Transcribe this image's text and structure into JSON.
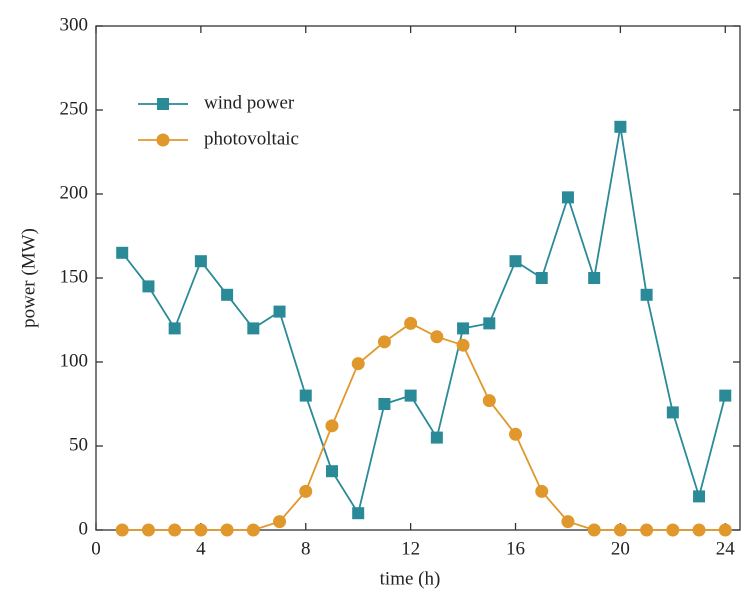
{
  "chart_data": {
    "type": "line",
    "xlabel": "time (h)",
    "ylabel": "power (MW)",
    "x": [
      1,
      2,
      3,
      4,
      5,
      6,
      7,
      8,
      9,
      10,
      11,
      12,
      13,
      14,
      15,
      16,
      17,
      18,
      19,
      20,
      21,
      22,
      23,
      24
    ],
    "series": [
      {
        "name": "wind power",
        "color": "#2a8a98",
        "marker": "square",
        "values": [
          165,
          145,
          120,
          160,
          140,
          120,
          130,
          80,
          35,
          10,
          75,
          80,
          55,
          120,
          123,
          160,
          150,
          198,
          150,
          240,
          140,
          70,
          20,
          80
        ]
      },
      {
        "name": "photovoltaic",
        "color": "#e0982c",
        "marker": "circle",
        "values": [
          0,
          0,
          0,
          0,
          0,
          0,
          5,
          23,
          62,
          99,
          112,
          123,
          115,
          110,
          77,
          57,
          23,
          5,
          0,
          0,
          0,
          0,
          0,
          0
        ]
      }
    ],
    "xlim": [
      0,
      24.6
    ],
    "xticks": [
      0,
      4,
      8,
      12,
      16,
      20,
      24
    ],
    "ylim": [
      0,
      300
    ],
    "yticks": [
      0,
      50,
      100,
      150,
      200,
      250,
      300
    ],
    "legend": "upper left",
    "grid": false
  }
}
